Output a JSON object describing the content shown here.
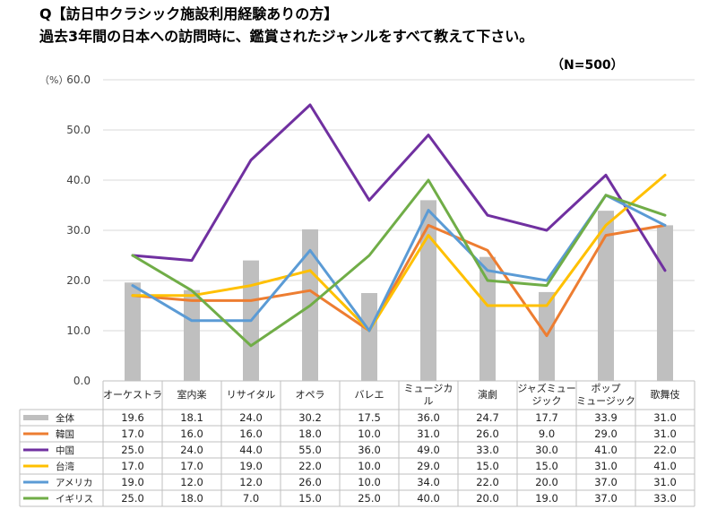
{
  "title_line1": "Q【訪日中クラシック施設利用経験ありの方】",
  "title_line2": "過去3年間の日本への訪問時に、鑑賞されたジャンルをすべて教えて下さい。",
  "sample_label": "（N=500）",
  "unit_label": "（%）",
  "chart_data": {
    "type": "bar+line",
    "title": "過去3年間の日本への訪問時に、鑑賞されたジャンルをすべて教えて下さい。",
    "ylabel": "（%）",
    "ylim": [
      0,
      60
    ],
    "yticks": [
      "0.0",
      "10.0",
      "20.0",
      "30.0",
      "40.0",
      "50.0",
      "60.0"
    ],
    "categories": [
      [
        "オーケストラ"
      ],
      [
        "室内楽"
      ],
      [
        "リサイタル"
      ],
      [
        "オペラ"
      ],
      [
        "バレエ"
      ],
      [
        "ミュージカ",
        "ル"
      ],
      [
        "演劇"
      ],
      [
        "ジャズミュー",
        "ジック"
      ],
      [
        "ポップ",
        "ミュージック"
      ],
      [
        "歌舞伎"
      ]
    ],
    "series": [
      {
        "name": "全体",
        "type": "bar",
        "color": "#bfbfbf",
        "values": [
          19.6,
          18.1,
          24.0,
          30.2,
          17.5,
          36.0,
          24.7,
          17.7,
          33.9,
          31.0
        ],
        "labels": [
          "19.6",
          "18.1",
          "24.0",
          "30.2",
          "17.5",
          "36.0",
          "24.7",
          "17.7",
          "33.9",
          "31.0"
        ]
      },
      {
        "name": "韓国",
        "type": "line",
        "color": "#ed7d31",
        "values": [
          17.0,
          16.0,
          16.0,
          18.0,
          10.0,
          31.0,
          26.0,
          9.0,
          29.0,
          31.0
        ],
        "labels": [
          "17.0",
          "16.0",
          "16.0",
          "18.0",
          "10.0",
          "31.0",
          "26.0",
          "9.0",
          "29.0",
          "31.0"
        ]
      },
      {
        "name": "中国",
        "type": "line",
        "color": "#7030a0",
        "values": [
          25.0,
          24.0,
          44.0,
          55.0,
          36.0,
          49.0,
          33.0,
          30.0,
          41.0,
          22.0
        ],
        "labels": [
          "25.0",
          "24.0",
          "44.0",
          "55.0",
          "36.0",
          "49.0",
          "33.0",
          "30.0",
          "41.0",
          "22.0"
        ]
      },
      {
        "name": "台湾",
        "type": "line",
        "color": "#ffc000",
        "values": [
          17.0,
          17.0,
          19.0,
          22.0,
          10.0,
          29.0,
          15.0,
          15.0,
          31.0,
          41.0
        ],
        "labels": [
          "17.0",
          "17.0",
          "19.0",
          "22.0",
          "10.0",
          "29.0",
          "15.0",
          "15.0",
          "31.0",
          "41.0"
        ]
      },
      {
        "name": "アメリカ",
        "type": "line",
        "color": "#5b9bd5",
        "values": [
          19.0,
          12.0,
          12.0,
          26.0,
          10.0,
          34.0,
          22.0,
          20.0,
          37.0,
          31.0
        ],
        "labels": [
          "19.0",
          "12.0",
          "12.0",
          "26.0",
          "10.0",
          "34.0",
          "22.0",
          "20.0",
          "37.0",
          "31.0"
        ]
      },
      {
        "name": "イギリス",
        "type": "line",
        "color": "#70ad47",
        "values": [
          25.0,
          18.0,
          7.0,
          15.0,
          25.0,
          40.0,
          20.0,
          19.0,
          37.0,
          33.0
        ],
        "labels": [
          "25.0",
          "18.0",
          "7.0",
          "15.0",
          "25.0",
          "40.0",
          "20.0",
          "19.0",
          "37.0",
          "33.0"
        ]
      }
    ]
  }
}
